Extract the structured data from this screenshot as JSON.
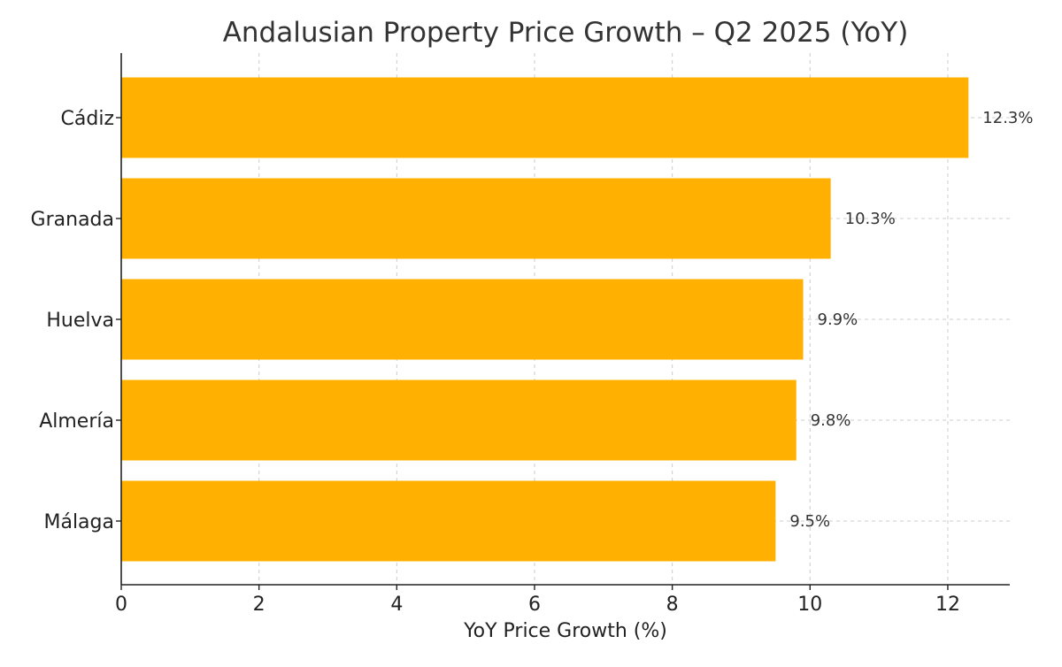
{
  "chart_data": {
    "type": "bar",
    "orientation": "horizontal",
    "title": "Andalusian Property Price Growth – Q2 2025 (YoY)",
    "xlabel": "YoY Price Growth (%)",
    "ylabel": "",
    "categories": [
      "Cádiz",
      "Granada",
      "Huelva",
      "Almería",
      "Málaga"
    ],
    "values": [
      12.3,
      10.3,
      9.9,
      9.8,
      9.5
    ],
    "data_labels": [
      "12.3%",
      "10.3%",
      "9.9%",
      "9.8%",
      "9.5%"
    ],
    "xlim": [
      0,
      12.9
    ],
    "xticks": [
      0,
      2,
      4,
      6,
      8,
      10,
      12
    ],
    "xtick_labels": [
      "0",
      "2",
      "4",
      "6",
      "8",
      "10",
      "12"
    ],
    "grid": true,
    "bar_color": "#FFB000",
    "legend": "none"
  }
}
